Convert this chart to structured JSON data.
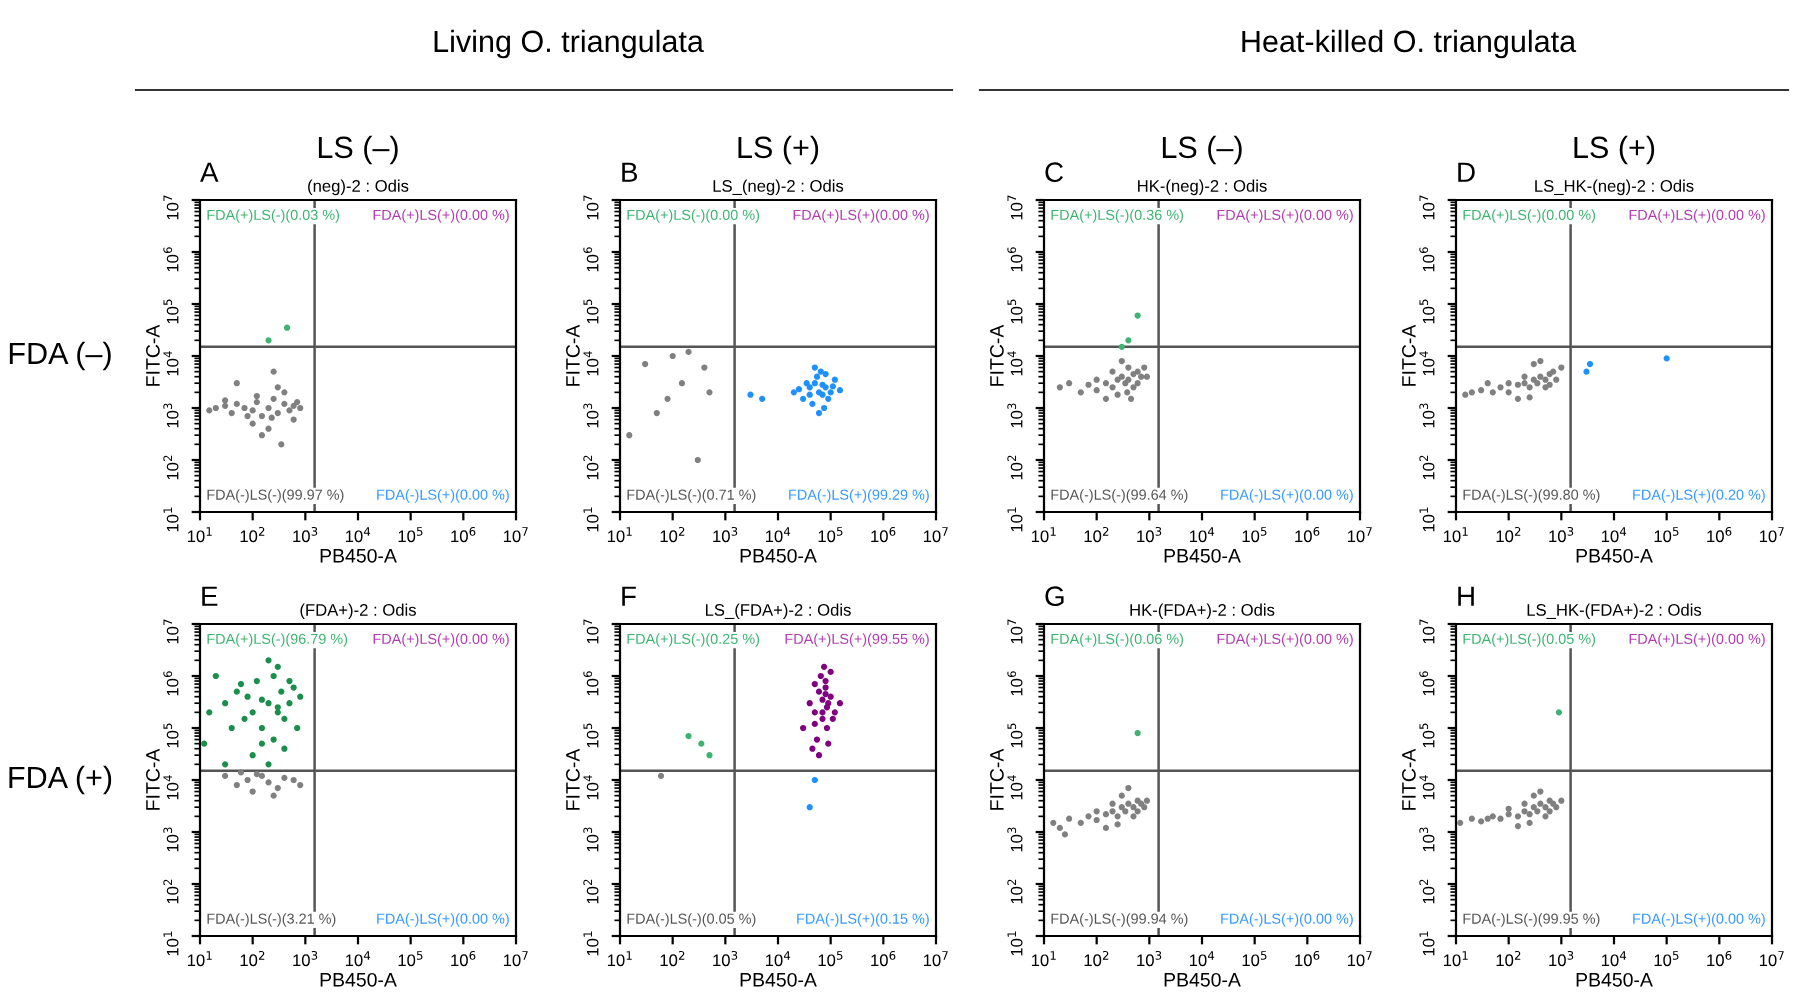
{
  "chart_data": [
    {
      "type": "scatter",
      "title": "(neg)-2 : Odis",
      "subtitle": "LS (–)",
      "xlabel": "PB450-A",
      "ylabel": "FITC-A",
      "log": "xy",
      "marker": "circle",
      "grid": false,
      "xlim": [
        10,
        10000000
      ],
      "ylim": [
        10,
        10000000
      ],
      "xticks": [
        {
          "value": 10,
          "label": "10$^{1}$"
        },
        {
          "value": 100,
          "label": "10$^{2}$"
        },
        {
          "value": 1000,
          "label": "10$^{3}$"
        },
        {
          "value": 10000,
          "label": "10$^{4}$"
        },
        {
          "value": 100000,
          "label": "10$^{5}$"
        },
        {
          "value": 1000000,
          "label": "10$^{6}$"
        },
        {
          "value": 10000000,
          "label": "10$^{7}$"
        }
      ],
      "yticks": [
        {
          "value": 10,
          "label": "10$^{1}$"
        },
        {
          "value": 100,
          "label": "10$^{2}$"
        },
        {
          "value": 1000,
          "label": "10$^{3}$"
        },
        {
          "value": 10000,
          "label": "10$^{4}$"
        },
        {
          "value": 100000,
          "label": "10$^{5}$"
        },
        {
          "value": 1000000,
          "label": "10$^{6}$"
        },
        {
          "value": 10000000,
          "label": "10$^{7}$"
        }
      ],
      "ref_lines": [
        {
          "axis": "x",
          "value": 1500,
          "color": "#555555"
        },
        {
          "axis": "y",
          "value": 15000,
          "color": "#555555"
        }
      ],
      "annotations": [
        "A",
        "FDA(+)LS(-)(0.03 %)",
        "FDA(+)LS(+)(0.00 %)",
        "FDA(-)LS(-)(99.97 %)",
        "FDA(-)LS(+)(0.00 %)",
        "FDA (–)",
        "Living O. triangulata"
      ],
      "series": [
        {
          "color": "#808080",
          "x": [
            15,
            20,
            30,
            40,
            50,
            70,
            100,
            120,
            150,
            200,
            250,
            300,
            400,
            500,
            600,
            700,
            800,
            100,
            200,
            300,
            50,
            150,
            400,
            250,
            80,
            600,
            30,
            230,
            120,
            350
          ],
          "values": [
            900,
            1000,
            1100,
            800,
            1200,
            1000,
            900,
            1300,
            700,
            1000,
            1500,
            800,
            1200,
            900,
            1100,
            1300,
            1000,
            500,
            400,
            2500,
            3000,
            300,
            2000,
            5000,
            700,
            600,
            1400,
            650,
            1700,
            200
          ]
        },
        {
          "color": "#3cb371",
          "x": [
            200,
            450
          ],
          "values": [
            20000,
            35000
          ]
        }
      ]
    },
    {
      "type": "scatter",
      "title": "LS_(neg)-2 : Odis",
      "subtitle": "LS (+)",
      "xlabel": "PB450-A",
      "ylabel": "FITC-A",
      "log": "xy",
      "marker": "circle",
      "grid": false,
      "xlim": [
        10,
        10000000
      ],
      "ylim": [
        10,
        10000000
      ],
      "xticks": [
        {
          "value": 10,
          "label": "10$^{1}$"
        },
        {
          "value": 100,
          "label": "10$^{2}$"
        },
        {
          "value": 1000,
          "label": "10$^{3}$"
        },
        {
          "value": 10000,
          "label": "10$^{4}$"
        },
        {
          "value": 100000,
          "label": "10$^{5}$"
        },
        {
          "value": 1000000,
          "label": "10$^{6}$"
        },
        {
          "value": 10000000,
          "label": "10$^{7}$"
        }
      ],
      "yticks": [
        {
          "value": 10,
          "label": "10$^{1}$"
        },
        {
          "value": 100,
          "label": "10$^{2}$"
        },
        {
          "value": 1000,
          "label": "10$^{3}$"
        },
        {
          "value": 10000,
          "label": "10$^{4}$"
        },
        {
          "value": 100000,
          "label": "10$^{5}$"
        },
        {
          "value": 1000000,
          "label": "10$^{6}$"
        },
        {
          "value": 10000000,
          "label": "10$^{7}$"
        }
      ],
      "ref_lines": [
        {
          "axis": "x",
          "value": 1500,
          "color": "#555555"
        },
        {
          "axis": "y",
          "value": 15000,
          "color": "#555555"
        }
      ],
      "annotations": [
        "B",
        "FDA(+)LS(-)(0.00 %)",
        "FDA(+)LS(+)(0.00 %)",
        "FDA(-)LS(-)(0.71 %)",
        "FDA(-)LS(+)(99.29 %)"
      ],
      "series": [
        {
          "color": "#808080",
          "x": [
            30,
            100,
            200,
            150,
            80,
            400,
            15,
            50,
            300,
            500
          ],
          "values": [
            7000,
            10000,
            12000,
            3000,
            1500,
            6000,
            300,
            800,
            100,
            2000
          ]
        },
        {
          "color": "#1e90ff",
          "x": [
            20000,
            30000,
            40000,
            50000,
            60000,
            70000,
            80000,
            100000,
            120000,
            150000,
            45000,
            55000,
            65000,
            75000,
            35000,
            90000,
            60000,
            50000,
            70000,
            40000,
            80000,
            25000,
            110000,
            5000,
            3000
          ],
          "values": [
            2000,
            1500,
            2500,
            3000,
            2000,
            1800,
            2500,
            2000,
            3500,
            2200,
            1200,
            4000,
            5000,
            1000,
            3000,
            1500,
            800,
            6000,
            2800,
            1800,
            4500,
            2300,
            2600,
            1500,
            1800
          ]
        }
      ]
    },
    {
      "type": "scatter",
      "title": "HK-(neg)-2 : Odis",
      "subtitle": "LS (–)",
      "xlabel": "PB450-A",
      "ylabel": "FITC-A",
      "log": "xy",
      "marker": "circle",
      "grid": false,
      "xlim": [
        10,
        10000000
      ],
      "ylim": [
        10,
        10000000
      ],
      "xticks": [
        {
          "value": 10,
          "label": "10$^{1}$"
        },
        {
          "value": 100,
          "label": "10$^{2}$"
        },
        {
          "value": 1000,
          "label": "10$^{3}$"
        },
        {
          "value": 10000,
          "label": "10$^{4}$"
        },
        {
          "value": 100000,
          "label": "10$^{5}$"
        },
        {
          "value": 1000000,
          "label": "10$^{6}$"
        },
        {
          "value": 10000000,
          "label": "10$^{7}$"
        }
      ],
      "yticks": [
        {
          "value": 10,
          "label": "10$^{1}$"
        },
        {
          "value": 100,
          "label": "10$^{2}$"
        },
        {
          "value": 1000,
          "label": "10$^{3}$"
        },
        {
          "value": 10000,
          "label": "10$^{4}$"
        },
        {
          "value": 100000,
          "label": "10$^{5}$"
        },
        {
          "value": 1000000,
          "label": "10$^{6}$"
        },
        {
          "value": 10000000,
          "label": "10$^{7}$"
        }
      ],
      "ref_lines": [
        {
          "axis": "x",
          "value": 1500,
          "color": "#555555"
        },
        {
          "axis": "y",
          "value": 15000,
          "color": "#555555"
        }
      ],
      "annotations": [
        "C",
        "FDA(+)LS(-)(0.36 %)",
        "FDA(+)LS(+)(0.00 %)",
        "FDA(-)LS(-)(99.64 %)",
        "FDA(-)LS(+)(0.00 %)",
        "Heat-killed O. triangulata"
      ],
      "series": [
        {
          "color": "#808080",
          "x": [
            20,
            30,
            50,
            70,
            100,
            150,
            200,
            250,
            300,
            350,
            400,
            500,
            600,
            700,
            900,
            150,
            250,
            400,
            300,
            200,
            500,
            100,
            600,
            380,
            450,
            800
          ],
          "values": [
            2500,
            3000,
            2000,
            2800,
            2200,
            3000,
            2500,
            3500,
            4000,
            3000,
            3500,
            4500,
            5000,
            4000,
            4000,
            1500,
            1800,
            6000,
            8000,
            5000,
            2500,
            3500,
            3000,
            2000,
            1500,
            6000
          ]
        },
        {
          "color": "#3cb371",
          "x": [
            300,
            400,
            600
          ],
          "values": [
            15000,
            20000,
            60000
          ]
        }
      ]
    },
    {
      "type": "scatter",
      "title": "LS_HK-(neg)-2 : Odis",
      "subtitle": "LS (+)",
      "xlabel": "PB450-A",
      "ylabel": "FITC-A",
      "log": "xy",
      "marker": "circle",
      "grid": false,
      "xlim": [
        10,
        10000000
      ],
      "ylim": [
        10,
        10000000
      ],
      "xticks": [
        {
          "value": 10,
          "label": "10$^{1}$"
        },
        {
          "value": 100,
          "label": "10$^{2}$"
        },
        {
          "value": 1000,
          "label": "10$^{3}$"
        },
        {
          "value": 10000,
          "label": "10$^{4}$"
        },
        {
          "value": 100000,
          "label": "10$^{5}$"
        },
        {
          "value": 1000000,
          "label": "10$^{6}$"
        },
        {
          "value": 10000000,
          "label": "10$^{7}$"
        }
      ],
      "yticks": [
        {
          "value": 10,
          "label": "10$^{1}$"
        },
        {
          "value": 100,
          "label": "10$^{2}$"
        },
        {
          "value": 1000,
          "label": "10$^{3}$"
        },
        {
          "value": 10000,
          "label": "10$^{4}$"
        },
        {
          "value": 100000,
          "label": "10$^{5}$"
        },
        {
          "value": 1000000,
          "label": "10$^{6}$"
        },
        {
          "value": 10000000,
          "label": "10$^{7}$"
        }
      ],
      "ref_lines": [
        {
          "axis": "x",
          "value": 1500,
          "color": "#555555"
        },
        {
          "axis": "y",
          "value": 15000,
          "color": "#555555"
        }
      ],
      "annotations": [
        "D",
        "FDA(+)LS(-)(0.00 %)",
        "FDA(+)LS(+)(0.00 %)",
        "FDA(-)LS(-)(99.80 %)",
        "FDA(-)LS(+)(0.20 %)"
      ],
      "series": [
        {
          "color": "#808080",
          "x": [
            15,
            20,
            30,
            50,
            70,
            100,
            150,
            200,
            250,
            300,
            350,
            400,
            500,
            600,
            700,
            1000,
            150,
            250,
            400,
            300,
            200,
            500,
            100,
            600,
            800,
            40
          ],
          "values": [
            1800,
            2000,
            2200,
            2000,
            2500,
            2000,
            2800,
            3000,
            2500,
            3500,
            3000,
            4000,
            3500,
            4500,
            5000,
            6000,
            1500,
            1600,
            8000,
            7000,
            4000,
            2500,
            3000,
            2800,
            3500,
            3000
          ]
        },
        {
          "color": "#1e90ff",
          "x": [
            3000,
            3500,
            100000
          ],
          "values": [
            5000,
            7000,
            9000
          ]
        }
      ]
    },
    {
      "type": "scatter",
      "title": "(FDA+)-2 : Odis",
      "xlabel": "PB450-A",
      "ylabel": "FITC-A",
      "log": "xy",
      "marker": "circle",
      "grid": false,
      "xlim": [
        10,
        10000000
      ],
      "ylim": [
        10,
        10000000
      ],
      "xticks": [
        {
          "value": 10,
          "label": "10$^{1}$"
        },
        {
          "value": 100,
          "label": "10$^{2}$"
        },
        {
          "value": 1000,
          "label": "10$^{3}$"
        },
        {
          "value": 10000,
          "label": "10$^{4}$"
        },
        {
          "value": 100000,
          "label": "10$^{5}$"
        },
        {
          "value": 1000000,
          "label": "10$^{6}$"
        },
        {
          "value": 10000000,
          "label": "10$^{7}$"
        }
      ],
      "yticks": [
        {
          "value": 10,
          "label": "10$^{1}$"
        },
        {
          "value": 100,
          "label": "10$^{2}$"
        },
        {
          "value": 1000,
          "label": "10$^{3}$"
        },
        {
          "value": 10000,
          "label": "10$^{4}$"
        },
        {
          "value": 100000,
          "label": "10$^{5}$"
        },
        {
          "value": 1000000,
          "label": "10$^{6}$"
        },
        {
          "value": 10000000,
          "label": "10$^{7}$"
        }
      ],
      "ref_lines": [
        {
          "axis": "x",
          "value": 1500,
          "color": "#555555"
        },
        {
          "axis": "y",
          "value": 15000,
          "color": "#555555"
        }
      ],
      "annotations": [
        "E",
        "FDA(+)LS(-)(96.79 %)",
        "FDA(+)LS(+)(0.00 %)",
        "FDA(-)LS(-)(3.21 %)",
        "FDA(-)LS(+)(0.00 %)",
        "FDA (+)"
      ],
      "series": [
        {
          "color": "#808080",
          "x": [
            30,
            50,
            80,
            100,
            150,
            200,
            300,
            400,
            600,
            800,
            250,
            120,
            60
          ],
          "values": [
            12000,
            8000,
            10000,
            6000,
            12000,
            9000,
            7000,
            11000,
            10000,
            8000,
            5000,
            13000,
            14000
          ]
        },
        {
          "color": "#1a8f4c",
          "x": [
            12,
            15,
            20,
            30,
            40,
            50,
            70,
            100,
            120,
            150,
            200,
            250,
            300,
            350,
            400,
            500,
            600,
            700,
            800,
            100,
            200,
            300,
            150,
            250,
            400,
            60,
            30,
            500,
            200,
            300,
            80,
            150
          ],
          "values": [
            50000,
            200000,
            1000000,
            300000,
            100000,
            500000,
            150000,
            200000,
            800000,
            50000,
            300000,
            1000000,
            200000,
            500000,
            150000,
            300000,
            600000,
            100000,
            400000,
            30000,
            20000,
            1500000,
            100000,
            60000,
            40000,
            700000,
            20000,
            800000,
            2000000,
            250000,
            400000,
            350000
          ]
        }
      ]
    },
    {
      "type": "scatter",
      "title": "LS_(FDA+)-2 : Odis",
      "xlabel": "PB450-A",
      "ylabel": "FITC-A",
      "log": "xy",
      "marker": "circle",
      "grid": false,
      "xlim": [
        10,
        10000000
      ],
      "ylim": [
        10,
        10000000
      ],
      "xticks": [
        {
          "value": 10,
          "label": "10$^{1}$"
        },
        {
          "value": 100,
          "label": "10$^{2}$"
        },
        {
          "value": 1000,
          "label": "10$^{3}$"
        },
        {
          "value": 10000,
          "label": "10$^{4}$"
        },
        {
          "value": 100000,
          "label": "10$^{5}$"
        },
        {
          "value": 1000000,
          "label": "10$^{6}$"
        },
        {
          "value": 10000000,
          "label": "10$^{7}$"
        }
      ],
      "yticks": [
        {
          "value": 10,
          "label": "10$^{1}$"
        },
        {
          "value": 100,
          "label": "10$^{2}$"
        },
        {
          "value": 1000,
          "label": "10$^{3}$"
        },
        {
          "value": 10000,
          "label": "10$^{4}$"
        },
        {
          "value": 100000,
          "label": "10$^{5}$"
        },
        {
          "value": 1000000,
          "label": "10$^{6}$"
        },
        {
          "value": 10000000,
          "label": "10$^{7}$"
        }
      ],
      "ref_lines": [
        {
          "axis": "x",
          "value": 1500,
          "color": "#555555"
        },
        {
          "axis": "y",
          "value": 15000,
          "color": "#555555"
        }
      ],
      "annotations": [
        "F",
        "FDA(+)LS(-)(0.25 %)",
        "FDA(+)LS(+)(99.55 %)",
        "FDA(-)LS(-)(0.05 %)",
        "FDA(-)LS(+)(0.15 %)"
      ],
      "series": [
        {
          "color": "#808080",
          "x": [
            60
          ],
          "values": [
            12000
          ]
        },
        {
          "color": "#3cb371",
          "x": [
            200,
            350,
            500
          ],
          "values": [
            70000,
            50000,
            30000
          ]
        },
        {
          "color": "#1e90ff",
          "x": [
            50000,
            40000
          ],
          "values": [
            10000,
            3000
          ]
        },
        {
          "color": "#800080",
          "x": [
            30000,
            40000,
            50000,
            60000,
            70000,
            80000,
            90000,
            100000,
            120000,
            150000,
            55000,
            65000,
            75000,
            85000,
            45000,
            70000,
            50000,
            80000,
            100000,
            50000,
            90000,
            70000,
            110000,
            60000,
            80000,
            85000
          ],
          "values": [
            100000,
            300000,
            200000,
            500000,
            150000,
            800000,
            300000,
            400000,
            200000,
            300000,
            60000,
            1000000,
            1500000,
            100000,
            40000,
            200000,
            120000,
            600000,
            1200000,
            700000,
            50000,
            350000,
            150000,
            30000,
            450000,
            250000
          ]
        }
      ]
    },
    {
      "type": "scatter",
      "title": "HK-(FDA+)-2 : Odis",
      "xlabel": "PB450-A",
      "ylabel": "FITC-A",
      "log": "xy",
      "marker": "circle",
      "grid": false,
      "xlim": [
        10,
        10000000
      ],
      "ylim": [
        10,
        10000000
      ],
      "xticks": [
        {
          "value": 10,
          "label": "10$^{1}$"
        },
        {
          "value": 100,
          "label": "10$^{2}$"
        },
        {
          "value": 1000,
          "label": "10$^{3}$"
        },
        {
          "value": 10000,
          "label": "10$^{4}$"
        },
        {
          "value": 100000,
          "label": "10$^{5}$"
        },
        {
          "value": 1000000,
          "label": "10$^{6}$"
        },
        {
          "value": 10000000,
          "label": "10$^{7}$"
        }
      ],
      "yticks": [
        {
          "value": 10,
          "label": "10$^{1}$"
        },
        {
          "value": 100,
          "label": "10$^{2}$"
        },
        {
          "value": 1000,
          "label": "10$^{3}$"
        },
        {
          "value": 10000,
          "label": "10$^{4}$"
        },
        {
          "value": 100000,
          "label": "10$^{5}$"
        },
        {
          "value": 1000000,
          "label": "10$^{6}$"
        },
        {
          "value": 10000000,
          "label": "10$^{7}$"
        }
      ],
      "ref_lines": [
        {
          "axis": "x",
          "value": 1500,
          "color": "#555555"
        },
        {
          "axis": "y",
          "value": 15000,
          "color": "#555555"
        }
      ],
      "annotations": [
        "G",
        "FDA(+)LS(-)(0.06 %)",
        "FDA(+)LS(+)(0.00 %)",
        "FDA(-)LS(-)(99.94 %)",
        "FDA(-)LS(+)(0.00 %)"
      ],
      "series": [
        {
          "color": "#808080",
          "x": [
            15,
            20,
            30,
            50,
            70,
            100,
            150,
            200,
            250,
            300,
            350,
            400,
            500,
            600,
            700,
            900,
            150,
            250,
            400,
            300,
            200,
            500,
            100,
            600,
            25,
            800
          ],
          "values": [
            1500,
            1200,
            1800,
            1500,
            2000,
            1700,
            2200,
            2500,
            2000,
            3000,
            2500,
            3500,
            3000,
            4000,
            3500,
            4000,
            1200,
            1400,
            7000,
            5000,
            3500,
            2000,
            2500,
            2500,
            900,
            3000
          ]
        },
        {
          "color": "#3cb371",
          "x": [
            600
          ],
          "values": [
            80000
          ]
        }
      ]
    },
    {
      "type": "scatter",
      "title": "LS_HK-(FDA+)-2 : Odis",
      "xlabel": "PB450-A",
      "ylabel": "FITC-A",
      "log": "xy",
      "marker": "circle",
      "grid": false,
      "xlim": [
        10,
        10000000
      ],
      "ylim": [
        10,
        10000000
      ],
      "xticks": [
        {
          "value": 10,
          "label": "10$^{1}$"
        },
        {
          "value": 100,
          "label": "10$^{2}$"
        },
        {
          "value": 1000,
          "label": "10$^{3}$"
        },
        {
          "value": 10000,
          "label": "10$^{4}$"
        },
        {
          "value": 100000,
          "label": "10$^{5}$"
        },
        {
          "value": 1000000,
          "label": "10$^{6}$"
        },
        {
          "value": 10000000,
          "label": "10$^{7}$"
        }
      ],
      "yticks": [
        {
          "value": 10,
          "label": "10$^{1}$"
        },
        {
          "value": 100,
          "label": "10$^{2}$"
        },
        {
          "value": 1000,
          "label": "10$^{3}$"
        },
        {
          "value": 10000,
          "label": "10$^{4}$"
        },
        {
          "value": 100000,
          "label": "10$^{5}$"
        },
        {
          "value": 1000000,
          "label": "10$^{6}$"
        },
        {
          "value": 10000000,
          "label": "10$^{7}$"
        }
      ],
      "ref_lines": [
        {
          "axis": "x",
          "value": 1500,
          "color": "#555555"
        },
        {
          "axis": "y",
          "value": 15000,
          "color": "#555555"
        }
      ],
      "annotations": [
        "H",
        "FDA(+)LS(-)(0.05 %)",
        "FDA(+)LS(+)(0.00 %)",
        "FDA(-)LS(-)(99.95 %)",
        "FDA(-)LS(+)(0.00 %)"
      ],
      "series": [
        {
          "color": "#808080",
          "x": [
            12,
            20,
            30,
            50,
            70,
            100,
            150,
            200,
            250,
            300,
            350,
            400,
            500,
            600,
            700,
            1000,
            150,
            250,
            400,
            300,
            200,
            500,
            100,
            600,
            800,
            40
          ],
          "values": [
            1500,
            1800,
            1600,
            2000,
            1800,
            2200,
            2000,
            2500,
            2200,
            3000,
            2500,
            3500,
            3000,
            4000,
            3500,
            4000,
            1300,
            1500,
            6000,
            5000,
            3500,
            2000,
            2800,
            2500,
            3000,
            1800
          ]
        },
        {
          "color": "#3cb371",
          "x": [
            900
          ],
          "values": [
            200000
          ]
        }
      ]
    }
  ]
}
